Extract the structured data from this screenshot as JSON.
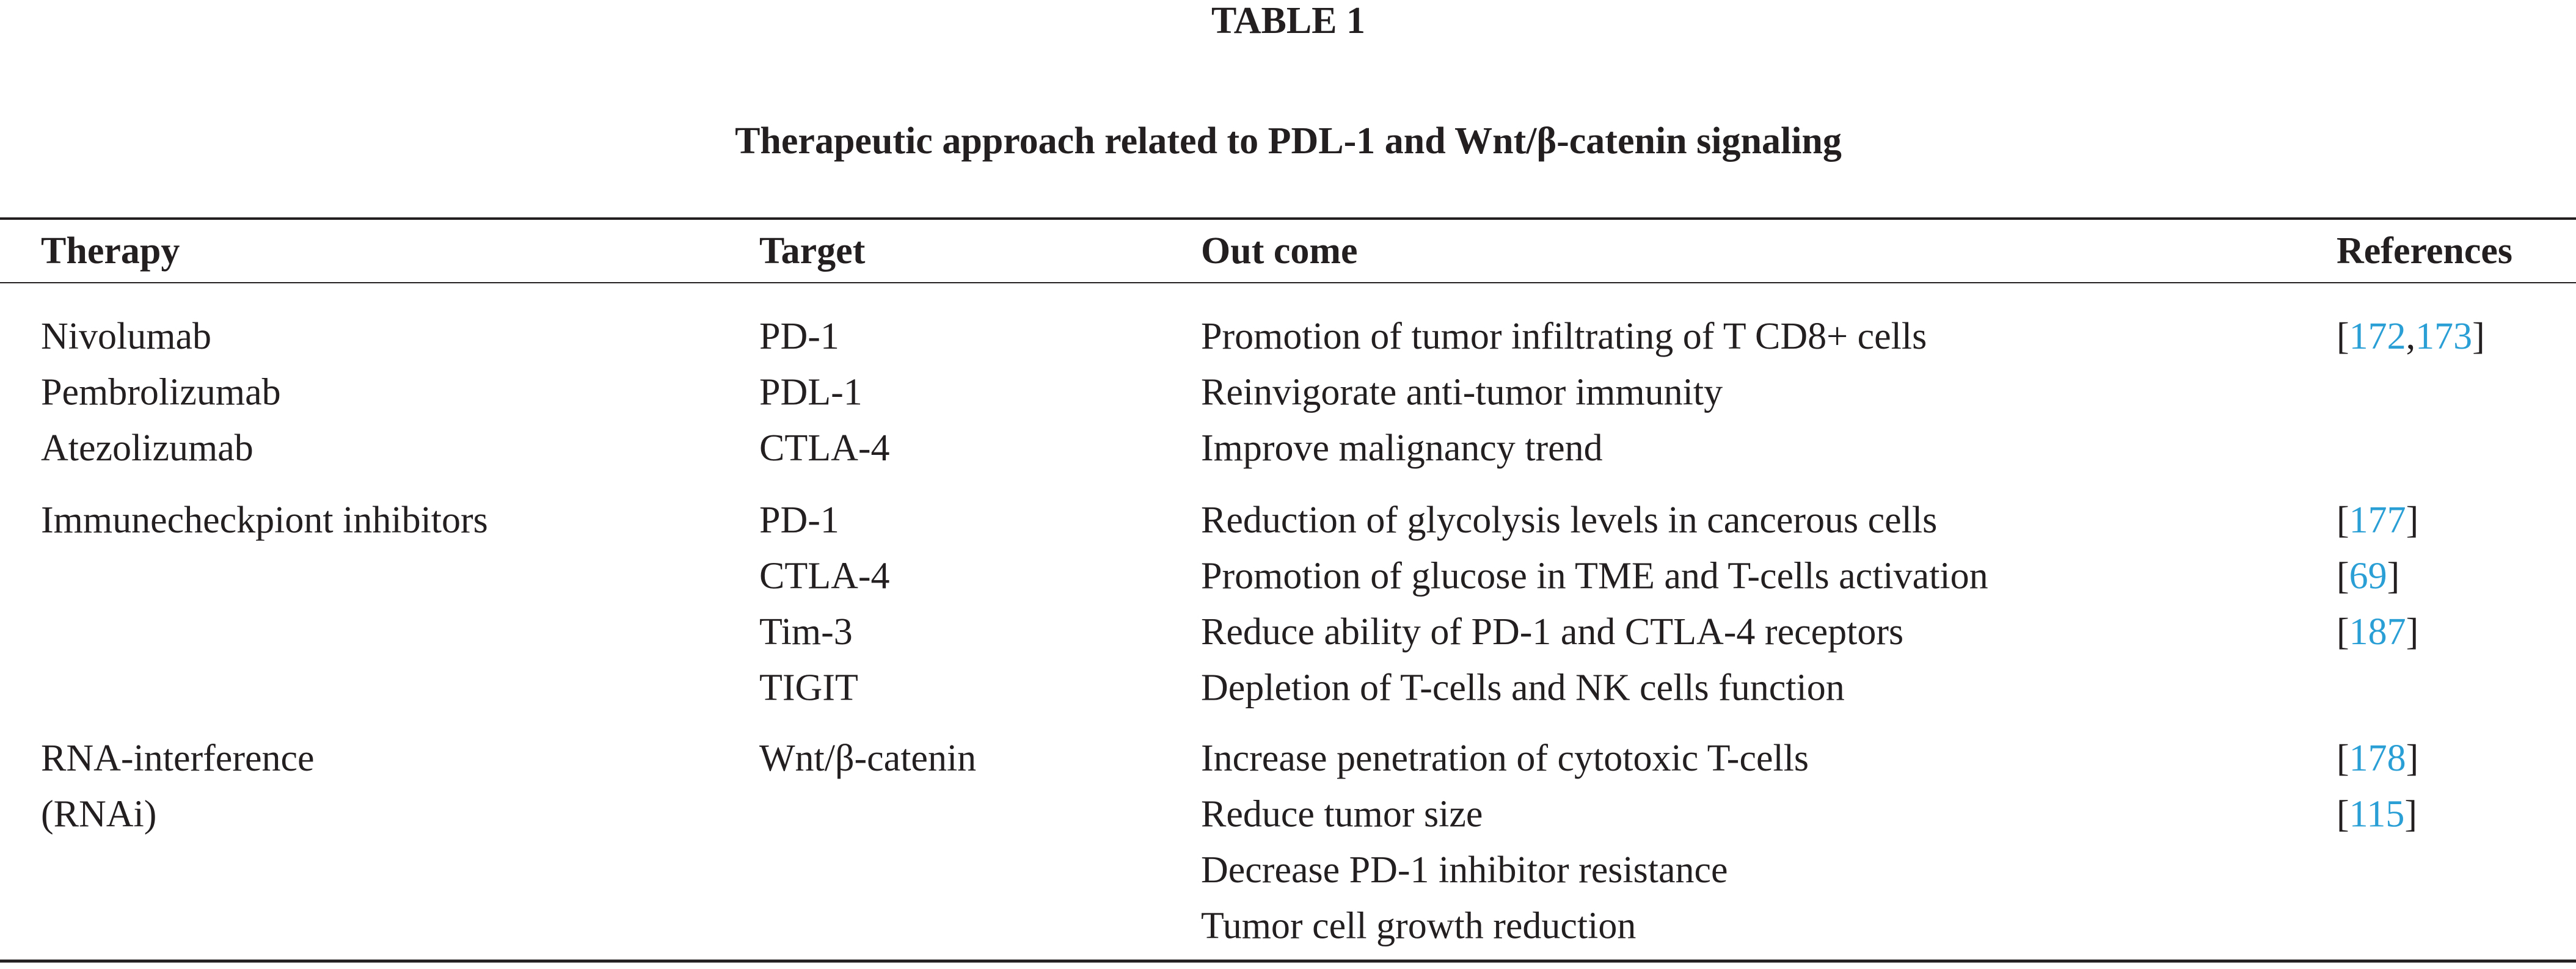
{
  "header": {
    "label": "TABLE 1",
    "title": "Therapeutic approach related to PDL-1 and Wnt/β-catenin signaling"
  },
  "table": {
    "columns": [
      "Therapy",
      "Target",
      "Out come",
      "References"
    ],
    "groups": [
      {
        "therapy": [
          "Nivolumab",
          "Pembrolizumab",
          "Atezolizumab"
        ],
        "target": [
          "PD-1",
          "PDL-1",
          "CTLA-4"
        ],
        "outcome": [
          "Promotion of tumor infiltrating of T CD8+ cells",
          "Reinvigorate anti-tumor immunity",
          "Improve malignancy trend"
        ],
        "references": [
          [
            "[",
            "172",
            ",",
            "173",
            "]"
          ]
        ]
      },
      {
        "therapy": [
          "Immunecheckpiont inhibitors"
        ],
        "target": [
          "PD-1",
          "CTLA-4",
          "Tim-3",
          "TIGIT"
        ],
        "outcome": [
          "Reduction of glycolysis levels in cancerous cells",
          "Promotion of glucose in TME and T-cells activation",
          "Reduce ability of PD-1 and CTLA-4 receptors",
          "Depletion of T-cells and NK cells function"
        ],
        "references": [
          [
            "[",
            "177",
            "]"
          ],
          [
            "[",
            "69",
            "]"
          ],
          [
            "[",
            "187",
            "]"
          ]
        ]
      },
      {
        "therapy": [
          "RNA-interference",
          "(RNAi)"
        ],
        "target": [
          "Wnt/β-catenin"
        ],
        "outcome": [
          "Increase penetration of cytotoxic T-cells",
          "Reduce tumor size",
          "Decrease PD-1 inhibitor resistance",
          "Tumor cell growth reduction"
        ],
        "references": [
          [
            "[",
            "178",
            "]"
          ],
          [
            "[",
            "115",
            "]"
          ]
        ]
      }
    ]
  }
}
